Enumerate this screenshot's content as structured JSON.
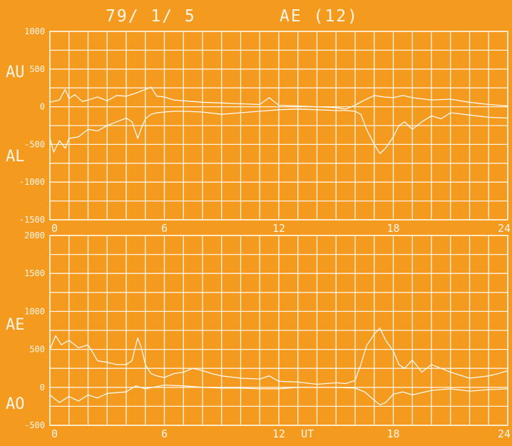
{
  "colors": {
    "background": "#f39a1f",
    "lines": "#fffaf2"
  },
  "header": {
    "date": "79/ 1/ 5",
    "index": "AE (12)"
  },
  "chart_data": [
    {
      "type": "line",
      "panel": "upper",
      "labels": [
        "AU",
        "AL"
      ],
      "x_ticks": [
        "0",
        "6",
        "12",
        "18",
        "24"
      ],
      "y_ticks": [
        "1000",
        "500",
        "0",
        "-500",
        "-1000",
        "-1500"
      ],
      "xlim": [
        0,
        24
      ],
      "ylim": [
        -1500,
        1000
      ],
      "grid": true,
      "series": [
        {
          "name": "AU",
          "x": [
            0,
            0.5,
            0.8,
            1.0,
            1.3,
            1.7,
            2.0,
            2.5,
            3.0,
            3.5,
            4.0,
            4.5,
            5.0,
            5.3,
            5.6,
            6.0,
            6.5,
            7.0,
            8.0,
            9.0,
            10.0,
            11.0,
            11.5,
            12.0,
            13.0,
            14.0,
            15.0,
            15.5,
            16.0,
            16.5,
            17.0,
            17.5,
            18.0,
            18.5,
            19.0,
            20.0,
            21.0,
            22.0,
            23.0,
            24.0
          ],
          "values": [
            60,
            90,
            230,
            110,
            160,
            70,
            90,
            130,
            80,
            150,
            140,
            180,
            230,
            260,
            140,
            130,
            90,
            80,
            60,
            50,
            40,
            30,
            120,
            20,
            10,
            0,
            -10,
            -30,
            20,
            90,
            150,
            130,
            120,
            150,
            120,
            90,
            100,
            60,
            30,
            10
          ]
        },
        {
          "name": "AL",
          "x": [
            0,
            0.2,
            0.5,
            0.8,
            1.0,
            1.5,
            2.0,
            2.5,
            3.0,
            3.5,
            4.0,
            4.3,
            4.6,
            4.8,
            5.0,
            5.3,
            5.6,
            6.0,
            6.5,
            7.0,
            8.0,
            9.0,
            10.0,
            11.0,
            12.0,
            13.0,
            14.0,
            15.0,
            15.5,
            16.0,
            16.3,
            16.6,
            17.0,
            17.3,
            17.6,
            18.0,
            18.3,
            18.6,
            19.0,
            19.5,
            20.0,
            20.5,
            21.0,
            22.0,
            23.0,
            24.0
          ],
          "values": [
            -420,
            -600,
            -450,
            -550,
            -420,
            -400,
            -300,
            -320,
            -250,
            -200,
            -150,
            -200,
            -420,
            -280,
            -160,
            -100,
            -80,
            -70,
            -60,
            -60,
            -70,
            -100,
            -80,
            -60,
            -40,
            -30,
            -40,
            -50,
            -50,
            -60,
            -100,
            -300,
            -500,
            -620,
            -550,
            -400,
            -250,
            -200,
            -300,
            -200,
            -120,
            -160,
            -80,
            -110,
            -140,
            -150
          ]
        }
      ]
    },
    {
      "type": "line",
      "panel": "lower",
      "labels": [
        "AE",
        "AO"
      ],
      "x_ticks": [
        "0",
        "6",
        "12",
        "18",
        "24"
      ],
      "x_unit": "UT",
      "y_ticks": [
        "2000",
        "1500",
        "1000",
        "500",
        "0",
        "-500"
      ],
      "xlim": [
        0,
        24
      ],
      "ylim": [
        -500,
        2000
      ],
      "grid": true,
      "series": [
        {
          "name": "AE",
          "x": [
            0,
            0.3,
            0.6,
            1.0,
            1.5,
            2.0,
            2.5,
            3.0,
            3.5,
            4.0,
            4.3,
            4.6,
            4.8,
            5.0,
            5.3,
            5.6,
            6.0,
            6.5,
            7.0,
            7.5,
            8.0,
            8.5,
            9.0,
            10.0,
            11.0,
            11.5,
            12.0,
            13.0,
            14.0,
            15.0,
            15.5,
            16.0,
            16.3,
            16.6,
            17.0,
            17.3,
            17.6,
            18.0,
            18.3,
            18.6,
            19.0,
            19.5,
            20.0,
            20.5,
            21.0,
            22.0,
            23.0,
            23.5,
            24.0
          ],
          "values": [
            500,
            680,
            560,
            620,
            520,
            560,
            350,
            330,
            300,
            300,
            350,
            650,
            520,
            300,
            180,
            150,
            130,
            180,
            200,
            250,
            220,
            180,
            150,
            120,
            110,
            150,
            80,
            70,
            40,
            60,
            50,
            90,
            300,
            550,
            700,
            780,
            620,
            480,
            300,
            250,
            360,
            200,
            300,
            250,
            200,
            120,
            150,
            180,
            220
          ]
        },
        {
          "name": "AO",
          "x": [
            0,
            0.5,
            1.0,
            1.5,
            2.0,
            2.5,
            3.0,
            4.0,
            4.5,
            5.0,
            6.0,
            7.0,
            8.0,
            9.0,
            10.0,
            11.0,
            12.0,
            13.0,
            14.0,
            15.0,
            16.0,
            16.5,
            17.0,
            17.3,
            17.6,
            18.0,
            18.5,
            19.0,
            20.0,
            21.0,
            22.0,
            23.0,
            24.0
          ],
          "values": [
            -100,
            -200,
            -120,
            -180,
            -100,
            -140,
            -80,
            -60,
            20,
            -20,
            30,
            20,
            0,
            -10,
            -10,
            -20,
            -20,
            0,
            0,
            0,
            -10,
            -60,
            -170,
            -230,
            -200,
            -90,
            -60,
            -100,
            -40,
            -20,
            -50,
            -30,
            -20
          ]
        }
      ]
    }
  ]
}
